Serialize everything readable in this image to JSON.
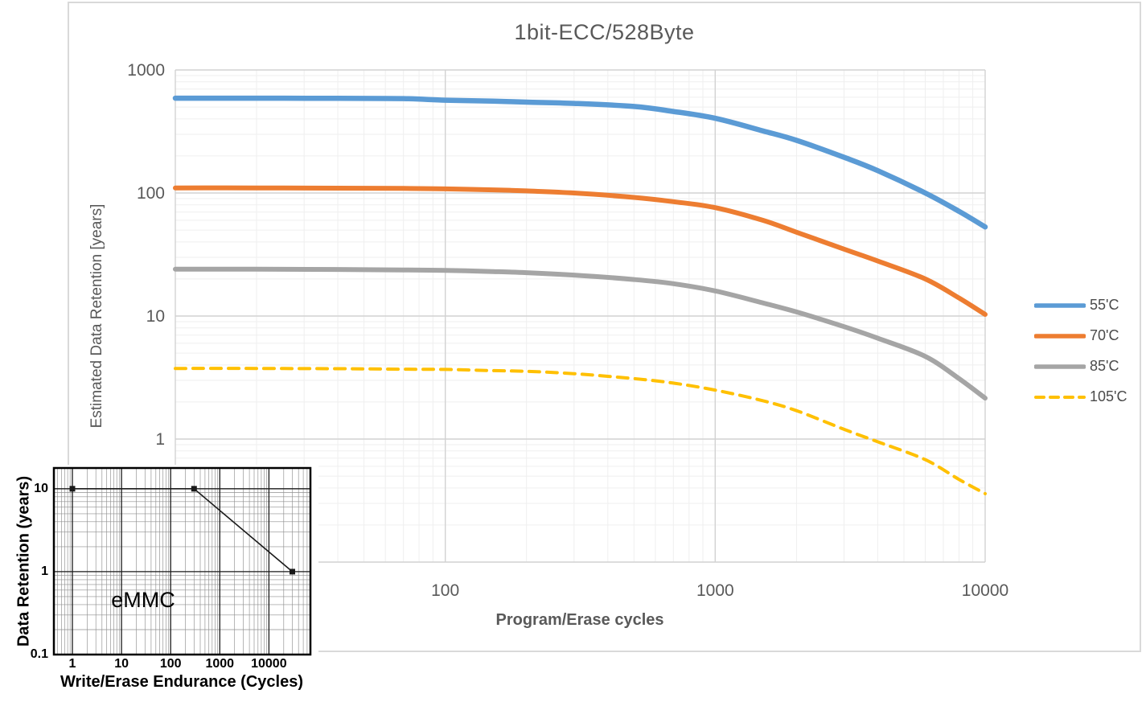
{
  "chart_data": [
    {
      "type": "line",
      "title": "1bit-ECC/528Byte",
      "xlabel": "Program/Erase cycles",
      "ylabel": "Estimated Data Retention [years]",
      "xscale": "log",
      "yscale": "log",
      "xlim": [
        10,
        10000
      ],
      "ylim": [
        0.1,
        1000
      ],
      "grid": "major+minor",
      "legend_position": "right",
      "x_ticks": [
        {
          "value": 100,
          "label": "100"
        },
        {
          "value": 1000,
          "label": "1000"
        },
        {
          "value": 10000,
          "label": "10000"
        }
      ],
      "y_ticks": [
        {
          "value": 1000,
          "label": "1000"
        },
        {
          "value": 100,
          "label": "100"
        },
        {
          "value": 10,
          "label": "10"
        },
        {
          "value": 1,
          "label": "1"
        }
      ],
      "series": [
        {
          "name": "55'C",
          "color": "#5B9BD5",
          "style": "solid",
          "points": [
            [
              10,
              590
            ],
            [
              20,
              590
            ],
            [
              40,
              588
            ],
            [
              70,
              585
            ],
            [
              100,
              568
            ],
            [
              150,
              558
            ],
            [
              200,
              548
            ],
            [
              300,
              535
            ],
            [
              500,
              505
            ],
            [
              700,
              460
            ],
            [
              1000,
              405
            ],
            [
              1500,
              320
            ],
            [
              2000,
              268
            ],
            [
              3000,
              195
            ],
            [
              4000,
              152
            ],
            [
              6000,
              100
            ],
            [
              8000,
              71
            ],
            [
              10000,
              53
            ]
          ]
        },
        {
          "name": "70'C",
          "color": "#ED7D31",
          "style": "solid",
          "points": [
            [
              10,
              110
            ],
            [
              20,
              110
            ],
            [
              40,
              109.5
            ],
            [
              70,
              109
            ],
            [
              100,
              108
            ],
            [
              150,
              106
            ],
            [
              200,
              104
            ],
            [
              300,
              100
            ],
            [
              500,
              92
            ],
            [
              700,
              85
            ],
            [
              1000,
              76
            ],
            [
              1500,
              60
            ],
            [
              2000,
              48
            ],
            [
              3000,
              35
            ],
            [
              4000,
              28
            ],
            [
              6000,
              20
            ],
            [
              8000,
              14
            ],
            [
              10000,
              10.3
            ]
          ]
        },
        {
          "name": "85'C",
          "color": "#A5A5A5",
          "style": "solid",
          "points": [
            [
              10,
              24
            ],
            [
              20,
              24
            ],
            [
              40,
              23.9
            ],
            [
              70,
              23.7
            ],
            [
              100,
              23.5
            ],
            [
              150,
              23
            ],
            [
              200,
              22.5
            ],
            [
              300,
              21.5
            ],
            [
              500,
              19.8
            ],
            [
              700,
              18.3
            ],
            [
              1000,
              16
            ],
            [
              1500,
              12.8
            ],
            [
              2000,
              10.8
            ],
            [
              3000,
              8.2
            ],
            [
              4000,
              6.6
            ],
            [
              6000,
              4.7
            ],
            [
              8000,
              3.1
            ],
            [
              10000,
              2.15
            ]
          ]
        },
        {
          "name": "105'C",
          "color": "#FFC000",
          "style": "dashed",
          "points": [
            [
              10,
              3.75
            ],
            [
              20,
              3.75
            ],
            [
              40,
              3.73
            ],
            [
              70,
              3.7
            ],
            [
              100,
              3.68
            ],
            [
              150,
              3.6
            ],
            [
              200,
              3.55
            ],
            [
              300,
              3.4
            ],
            [
              500,
              3.1
            ],
            [
              700,
              2.85
            ],
            [
              1000,
              2.5
            ],
            [
              1500,
              2.05
            ],
            [
              2000,
              1.7
            ],
            [
              3000,
              1.2
            ],
            [
              4000,
              0.95
            ],
            [
              6000,
              0.68
            ],
            [
              8000,
              0.47
            ],
            [
              10000,
              0.36
            ]
          ]
        }
      ]
    },
    {
      "type": "line",
      "annotation": "eMMC",
      "xlabel": "Write/Erase Endurance (Cycles)",
      "ylabel": "Data Retention (years)",
      "xscale": "log",
      "yscale": "log",
      "xlim": [
        0.42,
        70000
      ],
      "ylim": [
        0.1,
        17.8
      ],
      "grid": "major+minor",
      "x_ticks": [
        {
          "value": 1,
          "label": "1"
        },
        {
          "value": 10,
          "label": "10"
        },
        {
          "value": 100,
          "label": "100"
        },
        {
          "value": 1000,
          "label": "1000"
        },
        {
          "value": 10000,
          "label": "10000"
        }
      ],
      "y_ticks": [
        {
          "value": 10,
          "label": "10"
        },
        {
          "value": 1,
          "label": "1"
        },
        {
          "value": 0.1,
          "label": "0.1"
        }
      ],
      "series": [
        {
          "name": "eMMC",
          "color": "#1a1a1a",
          "style": "solid",
          "marker": "square",
          "points": [
            [
              1,
              10
            ],
            [
              300,
              10
            ],
            [
              30000,
              1
            ]
          ]
        }
      ]
    }
  ]
}
